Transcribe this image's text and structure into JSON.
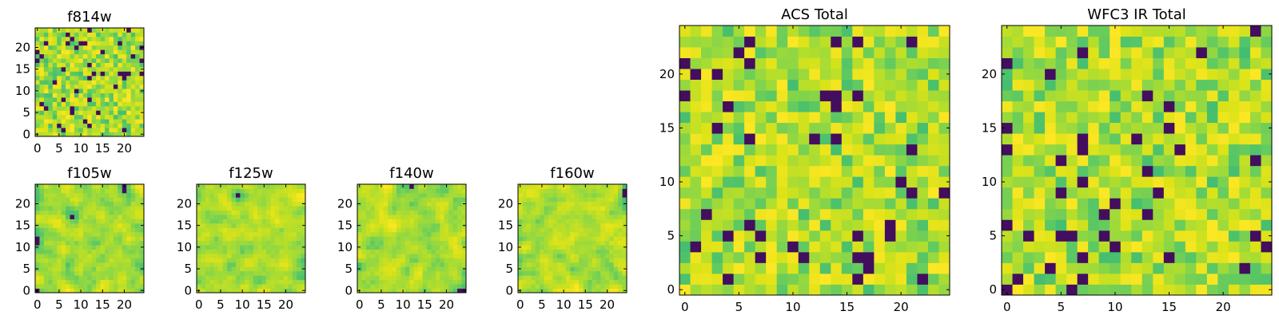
{
  "chart_data": [
    {
      "type": "heatmap",
      "title": "f814w",
      "rows": 25,
      "cols": 25,
      "xlim": [
        -0.5,
        24.5
      ],
      "ylim": [
        -0.5,
        24.5
      ],
      "xticks": [
        0,
        5,
        10,
        15,
        20
      ],
      "yticks": [
        0,
        5,
        10,
        15,
        20
      ],
      "colormap": "viridis",
      "texture": "pixel-noise",
      "seed": 11
    },
    {
      "type": "heatmap",
      "title": "f105w",
      "rows": 25,
      "cols": 25,
      "xlim": [
        -0.5,
        24.5
      ],
      "ylim": [
        -0.5,
        24.5
      ],
      "xticks": [
        0,
        5,
        10,
        15,
        20
      ],
      "yticks": [
        0,
        5,
        10,
        15,
        20
      ],
      "colormap": "viridis",
      "texture": "smooth",
      "seed": 23
    },
    {
      "type": "heatmap",
      "title": "f125w",
      "rows": 25,
      "cols": 25,
      "xlim": [
        -0.5,
        24.5
      ],
      "ylim": [
        -0.5,
        24.5
      ],
      "xticks": [
        0,
        5,
        10,
        15,
        20
      ],
      "yticks": [
        0,
        5,
        10,
        15,
        20
      ],
      "colormap": "viridis",
      "texture": "smooth",
      "seed": 37
    },
    {
      "type": "heatmap",
      "title": "f140w",
      "rows": 25,
      "cols": 25,
      "xlim": [
        -0.5,
        24.5
      ],
      "ylim": [
        -0.5,
        24.5
      ],
      "xticks": [
        0,
        5,
        10,
        15,
        20
      ],
      "yticks": [
        0,
        5,
        10,
        15,
        20
      ],
      "colormap": "viridis",
      "texture": "smooth",
      "seed": 41
    },
    {
      "type": "heatmap",
      "title": "f160w",
      "rows": 25,
      "cols": 25,
      "xlim": [
        -0.5,
        24.5
      ],
      "ylim": [
        -0.5,
        24.5
      ],
      "xticks": [
        0,
        5,
        10,
        15,
        20
      ],
      "yticks": [
        0,
        5,
        10,
        15,
        20
      ],
      "colormap": "viridis",
      "texture": "smooth",
      "seed": 53
    },
    {
      "type": "heatmap",
      "title": "ACS Total",
      "rows": 25,
      "cols": 25,
      "xlim": [
        -0.5,
        24.5
      ],
      "ylim": [
        -0.5,
        24.5
      ],
      "xticks": [
        0,
        5,
        10,
        15,
        20
      ],
      "yticks": [
        0,
        5,
        10,
        15,
        20
      ],
      "colormap": "viridis",
      "texture": "pixel-noise",
      "seed": 67
    },
    {
      "type": "heatmap",
      "title": "WFC3 IR Total",
      "rows": 25,
      "cols": 25,
      "xlim": [
        -0.5,
        24.5
      ],
      "ylim": [
        -0.5,
        24.5
      ],
      "xticks": [
        0,
        5,
        10,
        15,
        20
      ],
      "yticks": [
        0,
        5,
        10,
        15,
        20
      ],
      "colormap": "viridis",
      "texture": "pixel-noise",
      "seed": 79
    }
  ],
  "colors": {
    "viridis": [
      "#440154",
      "#3b528b",
      "#21918c",
      "#35b779",
      "#5ec962",
      "#8fd744",
      "#b5de2b",
      "#dde318",
      "#fde725"
    ],
    "frame": "#000000",
    "background": "#ffffff"
  }
}
